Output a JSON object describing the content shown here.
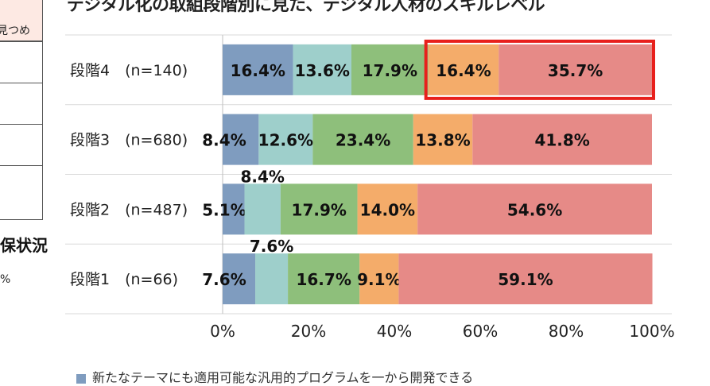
{
  "page": {
    "title": "デジタル化の取組段階別に見た、デジタル人材のスキルレベル"
  },
  "left_panel": {
    "top_cell_text": "見つめ",
    "heading": "保状況",
    "percent_text": "%"
  },
  "legend": {
    "first_item": "新たなテーマにも適用可能な汎用的プログラムを一から開発できる"
  },
  "chart_data": {
    "type": "bar",
    "orientation": "horizontal",
    "stacked": true,
    "categories": [
      "段階4　(n=140)",
      "段階3　(n=680)",
      "段階2　(n=487)",
      "段階1　(n=66)"
    ],
    "series": [
      {
        "values": [
          16.4,
          8.4,
          5.1,
          7.6
        ],
        "color": "#7f9cbf"
      },
      {
        "values": [
          13.6,
          12.6,
          8.4,
          7.6
        ],
        "color": "#9ecfcb"
      },
      {
        "values": [
          17.9,
          23.4,
          17.9,
          16.7
        ],
        "color": "#8ebf7b"
      },
      {
        "values": [
          16.4,
          13.8,
          14.0,
          9.1
        ],
        "color": "#f4ac6a"
      },
      {
        "values": [
          35.7,
          41.8,
          54.6,
          59.1
        ],
        "color": "#e68a87"
      }
    ],
    "labels": [
      [
        "16.4%",
        "13.6%",
        "17.9%",
        "16.4%",
        "35.7%"
      ],
      [
        "8.4%",
        "12.6%",
        "23.4%",
        "13.8%",
        "41.8%"
      ],
      [
        "5.1%",
        "8.4%",
        "17.9%",
        "14.0%",
        "54.6%"
      ],
      [
        "7.6%",
        "7.6%",
        "16.7%",
        "9.1%",
        "59.1%"
      ]
    ],
    "xlim": [
      0,
      100
    ],
    "xticks": [
      "0%",
      "20%",
      "40%",
      "60%",
      "80%",
      "100%"
    ],
    "grid": true,
    "highlight": {
      "category_index": 0,
      "from_series": 3,
      "color": "#e8201c"
    }
  }
}
